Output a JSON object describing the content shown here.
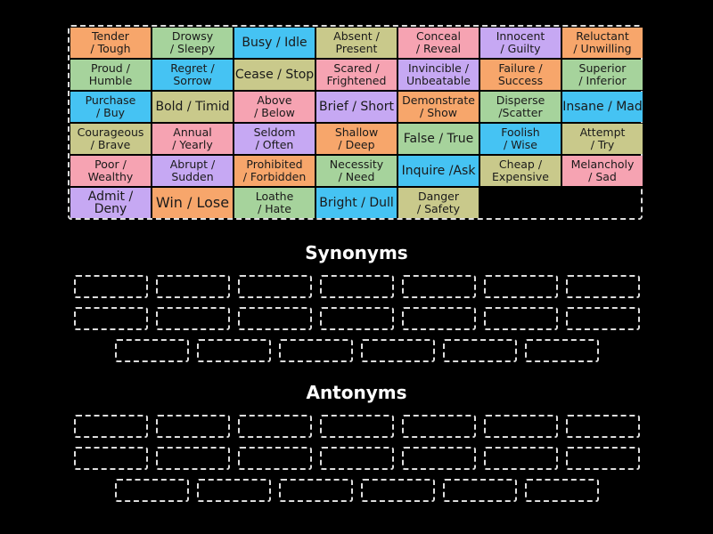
{
  "colors": {
    "orange": "#f7a66b",
    "green": "#a6d39c",
    "blue": "#45c3f3",
    "olive": "#c9c98b",
    "pink": "#f6a3b2",
    "purple": "#c6a8f3"
  },
  "cards": [
    {
      "text": "Tender\n/ Tough",
      "color": "orange"
    },
    {
      "text": "Drowsy\n/ Sleepy",
      "color": "green"
    },
    {
      "text": "Busy / Idle",
      "color": "blue"
    },
    {
      "text": "Absent /\nPresent",
      "color": "olive"
    },
    {
      "text": "Conceal\n/ Reveal",
      "color": "pink"
    },
    {
      "text": "Innocent\n/ Guilty",
      "color": "purple"
    },
    {
      "text": "Reluctant\n/ Unwilling",
      "color": "orange"
    },
    {
      "text": "Proud /\nHumble",
      "color": "green"
    },
    {
      "text": "Regret /\nSorrow",
      "color": "blue"
    },
    {
      "text": "Cease / Stop",
      "color": "olive"
    },
    {
      "text": "Scared /\nFrightened",
      "color": "pink"
    },
    {
      "text": "Invincible /\nUnbeatable",
      "color": "purple"
    },
    {
      "text": "Failure /\nSuccess",
      "color": "orange"
    },
    {
      "text": "Superior\n/ Inferior",
      "color": "green"
    },
    {
      "text": "Purchase\n/ Buy",
      "color": "blue"
    },
    {
      "text": "Bold / Timid",
      "color": "olive"
    },
    {
      "text": "Above\n/ Below",
      "color": "pink"
    },
    {
      "text": "Brief / Short",
      "color": "purple"
    },
    {
      "text": "Demonstrate\n/ Show",
      "color": "orange"
    },
    {
      "text": "Disperse\n/Scatter",
      "color": "green"
    },
    {
      "text": "Insane / Mad",
      "color": "blue"
    },
    {
      "text": "Courageous\n/ Brave",
      "color": "olive"
    },
    {
      "text": "Annual\n/ Yearly",
      "color": "pink"
    },
    {
      "text": "Seldom\n/ Often",
      "color": "purple"
    },
    {
      "text": "Shallow\n/ Deep",
      "color": "orange"
    },
    {
      "text": "False / True",
      "color": "green"
    },
    {
      "text": "Foolish\n/ Wise",
      "color": "blue"
    },
    {
      "text": "Attempt\n/ Try",
      "color": "olive"
    },
    {
      "text": "Poor /\nWealthy",
      "color": "pink"
    },
    {
      "text": "Abrupt /\nSudden",
      "color": "purple"
    },
    {
      "text": "Prohibited\n/ Forbidden",
      "color": "orange"
    },
    {
      "text": "Necessity\n/ Need",
      "color": "green"
    },
    {
      "text": "Inquire /Ask",
      "color": "blue"
    },
    {
      "text": "Cheap /\nExpensive",
      "color": "olive"
    },
    {
      "text": "Melancholy\n/ Sad",
      "color": "pink"
    },
    {
      "text": "Admit / Deny",
      "color": "purple"
    },
    {
      "text": "Win / Lose",
      "color": "orange"
    },
    {
      "text": "Loathe\n/ Hate",
      "color": "green"
    },
    {
      "text": "Bright / Dull",
      "color": "blue"
    },
    {
      "text": "Danger\n/ Safety",
      "color": "olive"
    }
  ],
  "groups": [
    {
      "title": "Synonyms",
      "slots": 20
    },
    {
      "title": "Antonyms",
      "slots": 20
    }
  ]
}
